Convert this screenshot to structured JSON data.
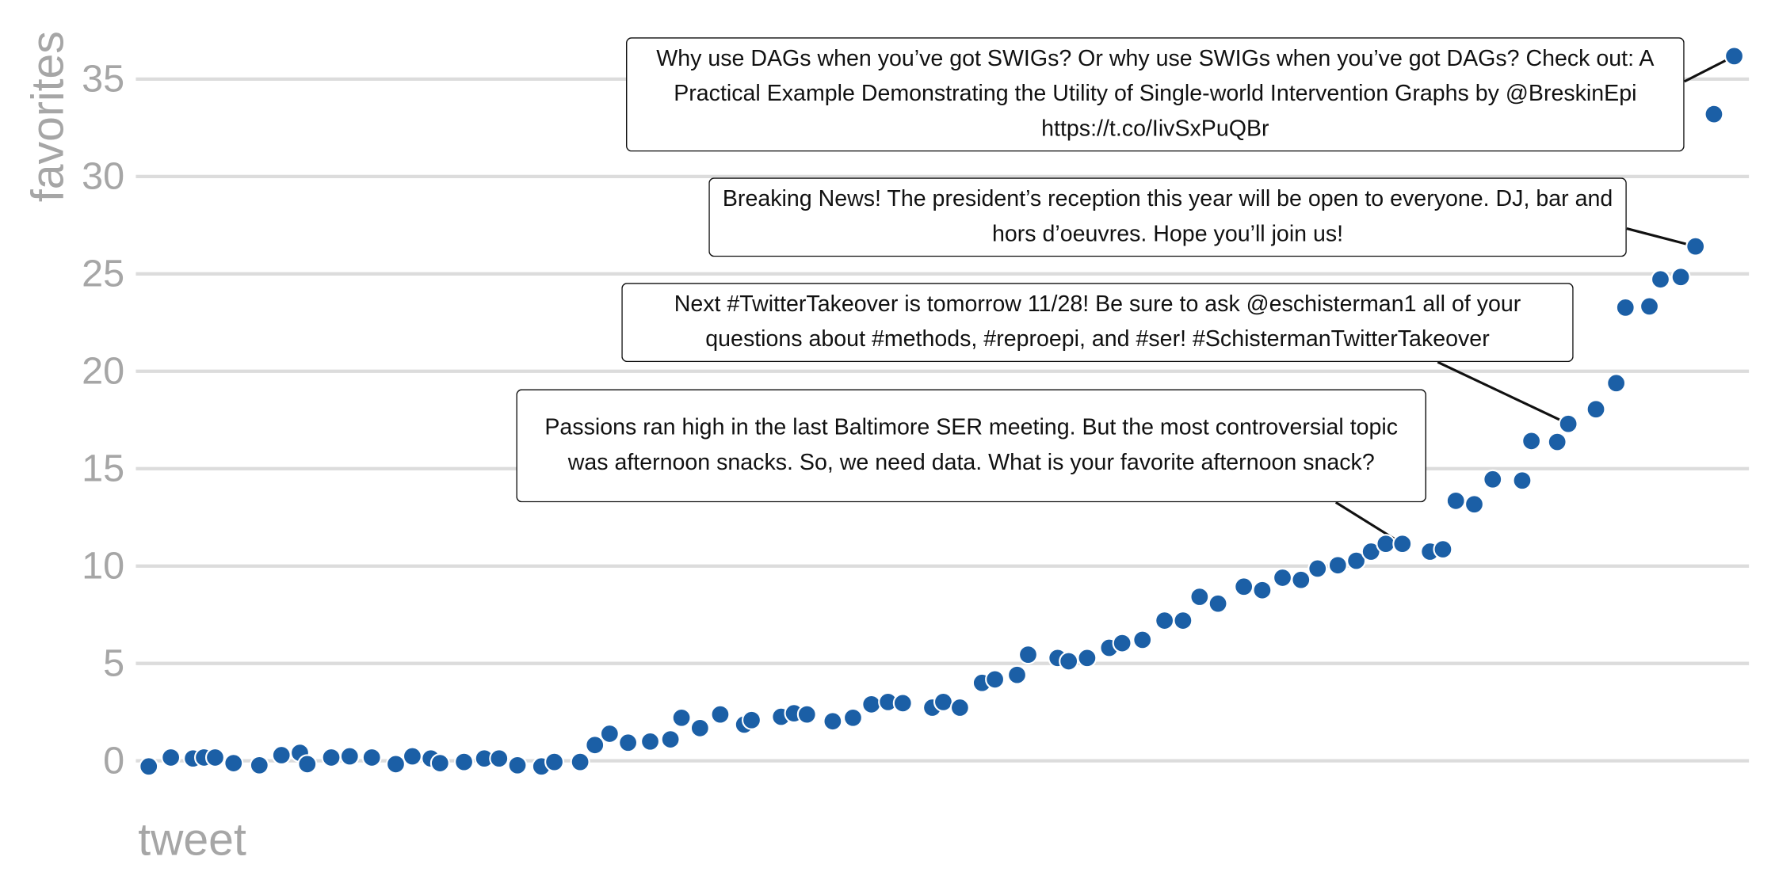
{
  "chart_data": {
    "type": "scatter",
    "x_label": "tweet",
    "y_label": "favorites",
    "color": "#1b5fa6",
    "grid": true,
    "xlim": [
      0.3,
      87.8
    ],
    "ylim": [
      -1.6,
      37.9
    ],
    "yticks": [
      0,
      5,
      10,
      15,
      20,
      25,
      30,
      35
    ],
    "x": [
      1.0,
      2.2,
      3.4,
      4.0,
      4.6,
      5.6,
      7.0,
      8.2,
      9.2,
      9.6,
      10.9,
      11.9,
      13.1,
      14.4,
      15.3,
      16.3,
      16.8,
      18.1,
      19.2,
      20.0,
      21.0,
      22.3,
      23.0,
      24.4,
      25.2,
      26.0,
      27.0,
      28.2,
      29.3,
      29.9,
      30.9,
      32.0,
      33.3,
      33.7,
      35.3,
      36.0,
      36.7,
      38.1,
      39.2,
      40.2,
      41.1,
      41.9,
      43.5,
      44.1,
      45.0,
      46.2,
      46.9,
      48.1,
      48.7,
      50.3,
      50.9,
      51.9,
      53.1,
      53.8,
      54.9,
      56.1,
      57.1,
      58.0,
      59.0,
      60.4,
      61.4,
      62.5,
      63.5,
      64.4,
      65.5,
      66.5,
      67.3,
      68.1,
      69.0,
      70.5,
      71.2,
      71.9,
      72.9,
      73.9,
      75.5,
      76.0,
      77.4,
      78.0,
      79.5,
      80.6,
      81.1,
      82.4,
      83.0,
      84.1,
      84.9,
      85.9,
      87.0
    ],
    "values": [
      -0.29,
      0.17,
      0.12,
      0.17,
      0.17,
      -0.12,
      -0.23,
      0.29,
      0.41,
      -0.17,
      0.17,
      0.23,
      0.17,
      -0.17,
      0.23,
      0.12,
      -0.12,
      -0.06,
      0.12,
      0.12,
      -0.23,
      -0.29,
      -0.06,
      -0.06,
      0.81,
      1.39,
      0.93,
      0.99,
      1.1,
      2.21,
      1.68,
      2.38,
      1.86,
      2.09,
      2.26,
      2.44,
      2.38,
      2.03,
      2.21,
      2.9,
      3.02,
      2.96,
      2.73,
      3.02,
      2.73,
      4.0,
      4.18,
      4.41,
      5.45,
      5.28,
      5.11,
      5.28,
      5.8,
      6.04,
      6.21,
      7.2,
      7.2,
      8.42,
      8.07,
      8.94,
      8.76,
      9.4,
      9.29,
      9.87,
      10.04,
      10.27,
      10.74,
      11.14,
      11.14,
      10.74,
      10.86,
      13.35,
      13.17,
      14.45,
      14.39,
      16.42,
      16.37,
      17.3,
      18.05,
      19.39,
      23.27,
      23.33,
      24.72,
      24.84,
      26.41,
      33.2,
      36.18
    ],
    "annotations": [
      "Why use DAGs when you’ve got SWIGs? Or why use SWIGs when you’ve got DAGs? Check out: A Practical Example Demonstrating the Utility of Single-world Intervention Graphs by @BreskinEpi https://t.co/IivSxPuQBr",
      "Breaking News! The president’s reception this year will be open to everyone. DJ, bar and hors d’oeuvres. Hope you’ll join us!",
      "Next #TwitterTakeover is tomorrow 11/28! Be sure to ask @eschisterman1 all of your questions about #methods, #reproepi, and #ser! #SchistermanTwitterTakeover",
      "Passions ran high in the last Baltimore SER meeting. But the most controversial topic was afternoon snacks. So, we need data. What is your favorite afternoon snack?"
    ]
  }
}
